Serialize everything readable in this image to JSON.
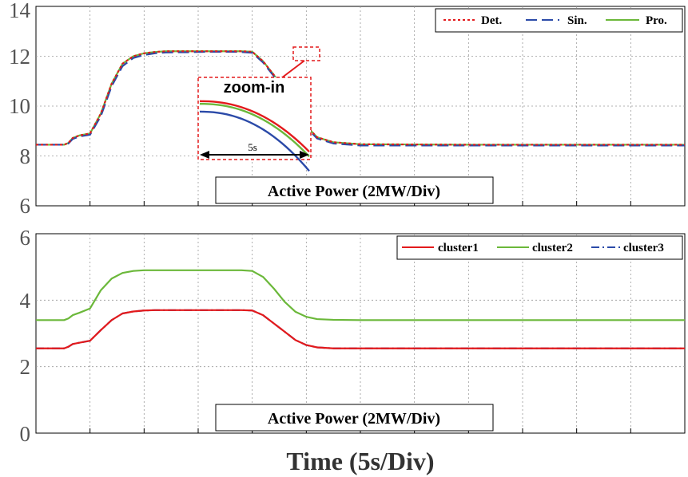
{
  "chart_data": [
    {
      "type": "line",
      "xlabel": "Time (5s/Div)",
      "ylabel": "",
      "box_label": "Active Power (2MW/Div)",
      "ylim": [
        6,
        14
      ],
      "yticks": [
        "6",
        "8",
        "10",
        "12",
        "14"
      ],
      "x": [
        0,
        1.5,
        2,
        2.6,
        3,
        3.4,
        4,
        5,
        6,
        7,
        8,
        9,
        10,
        11,
        12,
        13,
        14,
        15,
        16,
        17,
        18,
        19,
        20,
        21,
        22,
        23,
        24,
        25,
        26,
        27.5,
        30,
        40,
        60
      ],
      "series": [
        {
          "name": "Det.",
          "color": "#e31a1c",
          "dash": "3,3",
          "values": [
            8.45,
            8.45,
            8.45,
            8.45,
            8.52,
            8.72,
            8.82,
            8.9,
            9.7,
            10.9,
            11.7,
            12.0,
            12.12,
            12.17,
            12.2,
            12.2,
            12.2,
            12.2,
            12.2,
            12.2,
            12.2,
            12.2,
            12.18,
            11.8,
            11.25,
            10.6,
            9.9,
            9.2,
            8.75,
            8.55,
            8.47,
            8.45,
            8.45
          ]
        },
        {
          "name": "Sin.",
          "color": "#2b4aa8",
          "dash": "14,6",
          "values": [
            8.45,
            8.45,
            8.45,
            8.45,
            8.5,
            8.68,
            8.78,
            8.85,
            9.6,
            10.8,
            11.6,
            11.93,
            12.05,
            12.12,
            12.15,
            12.16,
            12.16,
            12.17,
            12.18,
            12.18,
            12.18,
            12.17,
            12.14,
            11.75,
            11.2,
            10.55,
            9.85,
            9.15,
            8.7,
            8.5,
            8.42,
            8.42,
            8.42
          ]
        },
        {
          "name": "Pro.",
          "color": "#6bb83a",
          "dash": "",
          "values": [
            8.45,
            8.45,
            8.45,
            8.45,
            8.52,
            8.72,
            8.82,
            8.9,
            9.7,
            10.9,
            11.7,
            12.0,
            12.12,
            12.17,
            12.2,
            12.2,
            12.2,
            12.2,
            12.2,
            12.2,
            12.2,
            12.2,
            12.18,
            11.8,
            11.25,
            10.6,
            9.9,
            9.2,
            8.75,
            8.55,
            8.47,
            8.45,
            8.45
          ]
        }
      ],
      "zoom": {
        "label": "zoom-in",
        "span_label": "5s",
        "x_range": [
          21.2,
          22.3
        ],
        "y_range": [
          11.82,
          12.32
        ]
      }
    },
    {
      "type": "line",
      "xlabel": "Time (5s/Div)",
      "ylabel": "",
      "box_label": "Active Power (2MW/Div)",
      "ylim": [
        0,
        6
      ],
      "yticks": [
        "0",
        "2",
        "4",
        "6"
      ],
      "x": [
        0,
        1.5,
        2,
        2.6,
        3,
        3.4,
        4,
        5,
        6,
        7,
        8,
        9,
        10,
        11,
        12,
        13,
        14,
        15,
        16,
        17,
        18,
        19,
        20,
        21,
        22,
        23,
        24,
        25,
        26,
        27.5,
        30,
        40,
        60
      ],
      "series": [
        {
          "name": "cluster1",
          "color": "#e31a1c",
          "dash": "",
          "values": [
            2.55,
            2.55,
            2.55,
            2.55,
            2.6,
            2.68,
            2.72,
            2.78,
            3.1,
            3.4,
            3.6,
            3.66,
            3.69,
            3.7,
            3.7,
            3.7,
            3.7,
            3.7,
            3.7,
            3.7,
            3.7,
            3.7,
            3.69,
            3.55,
            3.3,
            3.05,
            2.8,
            2.65,
            2.58,
            2.55,
            2.55,
            2.55,
            2.55
          ]
        },
        {
          "name": "cluster2",
          "color": "#6bb83a",
          "dash": "",
          "values": [
            3.4,
            3.4,
            3.4,
            3.4,
            3.45,
            3.55,
            3.62,
            3.75,
            4.3,
            4.65,
            4.82,
            4.88,
            4.9,
            4.9,
            4.9,
            4.9,
            4.9,
            4.9,
            4.9,
            4.9,
            4.9,
            4.9,
            4.88,
            4.7,
            4.35,
            3.95,
            3.65,
            3.5,
            3.43,
            3.41,
            3.4,
            3.4,
            3.4
          ]
        },
        {
          "name": "cluster3",
          "color": "#2b4aa8",
          "dash": "10,4,2,4",
          "values": [
            2.55,
            2.55,
            2.55,
            2.55,
            2.6,
            2.68,
            2.72,
            2.78,
            3.1,
            3.4,
            3.6,
            3.66,
            3.69,
            3.7,
            3.7,
            3.7,
            3.7,
            3.7,
            3.7,
            3.7,
            3.7,
            3.7,
            3.69,
            3.55,
            3.3,
            3.05,
            2.8,
            2.65,
            2.58,
            2.55,
            2.55,
            2.55,
            2.55
          ]
        }
      ]
    }
  ]
}
